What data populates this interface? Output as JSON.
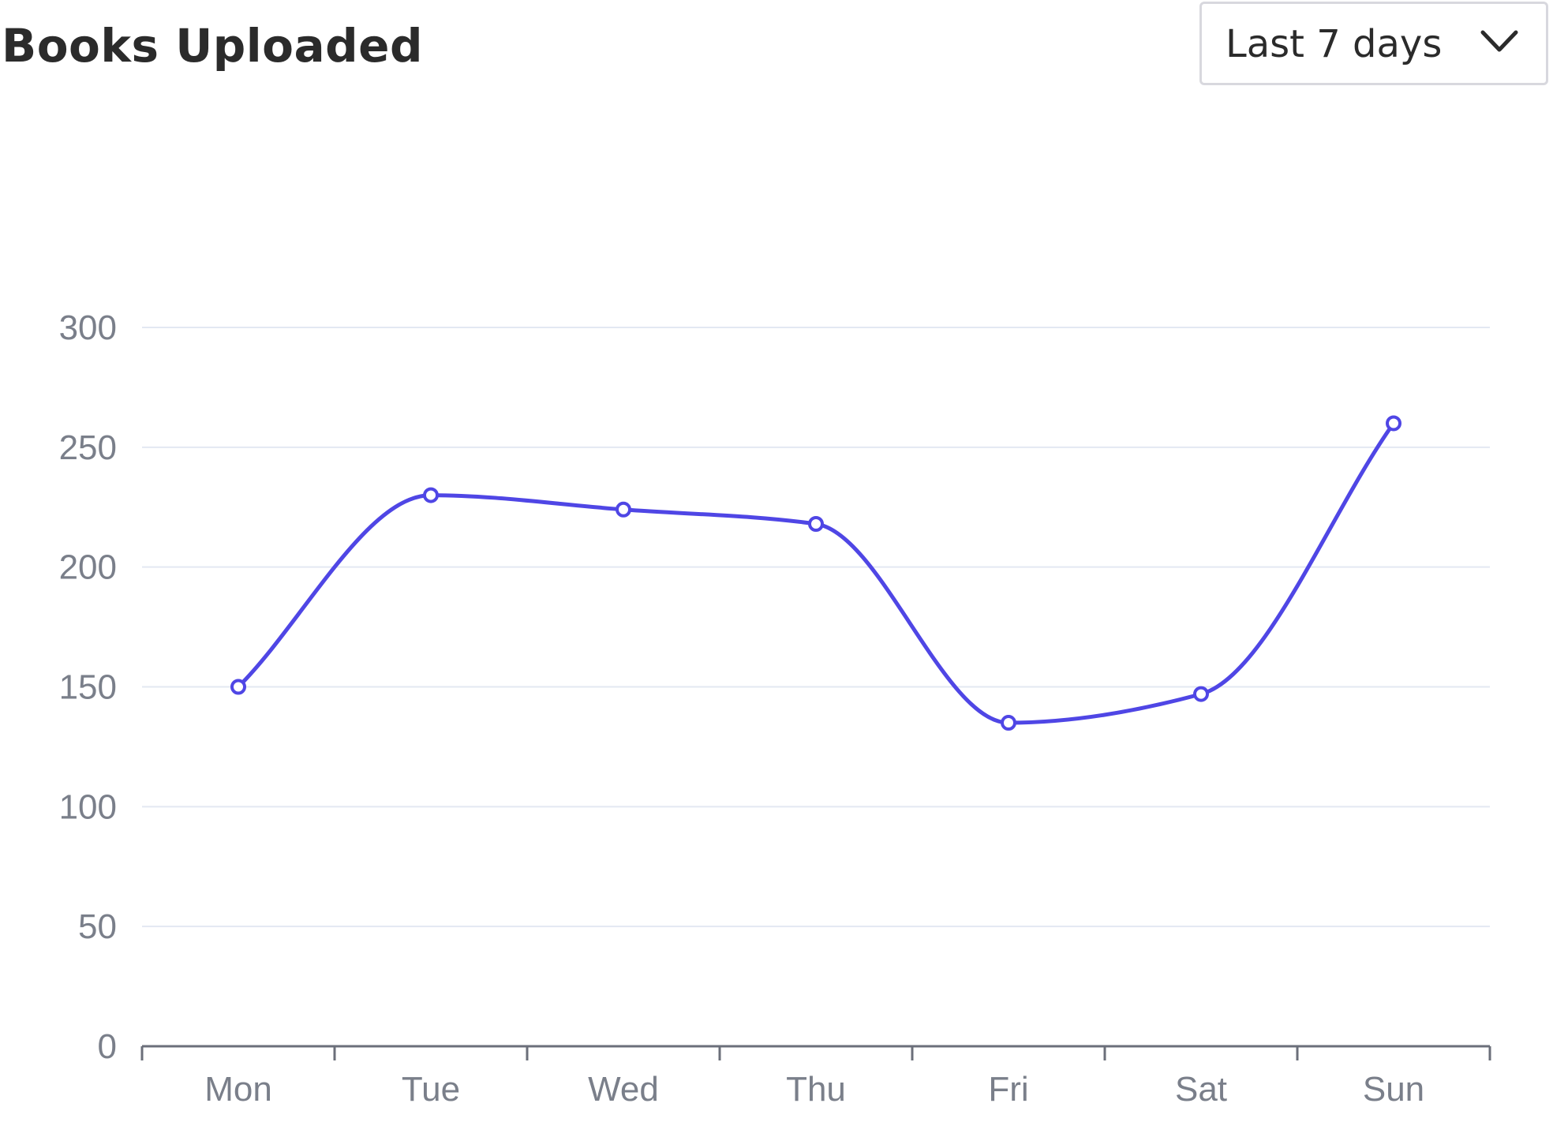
{
  "header": {
    "title": "Books Uploaded",
    "range_select": {
      "value": "Last 7 days",
      "icon": "chevron-down-icon"
    }
  },
  "colors": {
    "line": "#4f46e5",
    "gridline": "#e3e8f2",
    "axis": "#6b6f7a",
    "tick_label": "#7a7f8a",
    "title": "#2b2b2b"
  },
  "chart_data": {
    "type": "line",
    "title": "",
    "xlabel": "",
    "ylabel": "",
    "categories": [
      "Mon",
      "Tue",
      "Wed",
      "Thu",
      "Fri",
      "Sat",
      "Sun"
    ],
    "series": [
      {
        "values": [
          150,
          230,
          224,
          218,
          135,
          147,
          260
        ]
      }
    ],
    "ylim": [
      0,
      300
    ],
    "yticks": [
      0,
      50,
      100,
      150,
      200,
      250,
      300
    ],
    "smooth": true,
    "markers": "hollow-circle",
    "grid": "horizontal",
    "legend": "none"
  }
}
